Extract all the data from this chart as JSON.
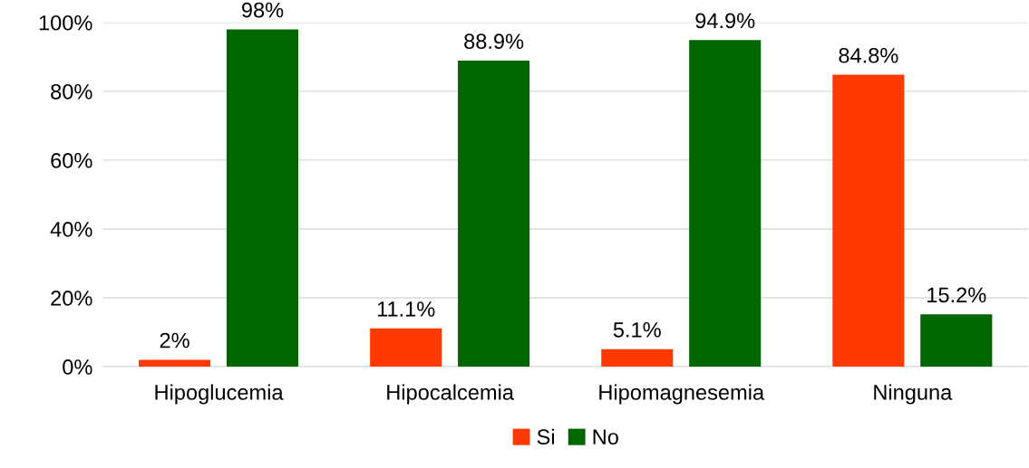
{
  "chart_data": {
    "type": "bar",
    "categories": [
      "Hipoglucemia",
      "Hipocalcemia",
      "Hipomagnesemia",
      "Ninguna"
    ],
    "series": [
      {
        "name": "Si",
        "color": "#ff3a00",
        "values": [
          2,
          11.1,
          5.1,
          84.8
        ],
        "value_labels": [
          "2%",
          "11.1%",
          "5.1%",
          "84.8%"
        ]
      },
      {
        "name": "No",
        "color": "#006600",
        "values": [
          98,
          88.9,
          94.9,
          15.2
        ],
        "value_labels": [
          "98%",
          "88.9%",
          "94.9%",
          "15.2%"
        ]
      }
    ],
    "ylim": [
      0,
      100
    ],
    "yticks": [
      {
        "value": 0,
        "label": "0%"
      },
      {
        "value": 20,
        "label": "20%"
      },
      {
        "value": 40,
        "label": "40%"
      },
      {
        "value": 60,
        "label": "60%"
      },
      {
        "value": 80,
        "label": "80%"
      },
      {
        "value": 100,
        "label": "100%"
      }
    ],
    "grid": "y",
    "legend": "bottom"
  }
}
